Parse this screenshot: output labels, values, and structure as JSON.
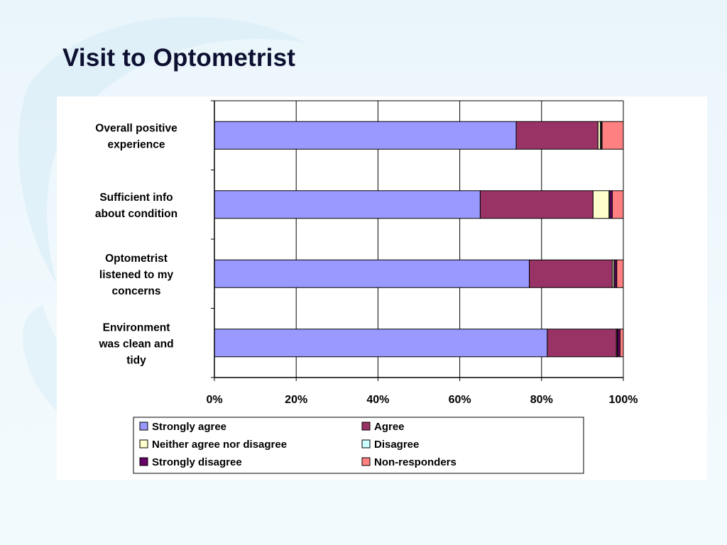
{
  "slide": {
    "title": "Visit to Optometrist"
  },
  "chart_data": {
    "type": "bar",
    "orientation": "horizontal",
    "stacked": "percent",
    "title": "",
    "xlabel": "",
    "ylabel": "",
    "xlim": [
      0,
      100
    ],
    "x_ticks": [
      "0%",
      "20%",
      "40%",
      "60%",
      "80%",
      "100%"
    ],
    "grid": true,
    "legend_position": "bottom",
    "categories": [
      [
        "Overall positive",
        "experience"
      ],
      [
        "Sufficient info",
        "about condition"
      ],
      [
        "Optometrist",
        "listened to my",
        "concerns"
      ],
      [
        "Environment",
        "was clean and",
        "tidy"
      ]
    ],
    "series": [
      {
        "name": "Strongly agree",
        "color": "#9999ff",
        "values": [
          73.8,
          65.0,
          77.0,
          81.4
        ]
      },
      {
        "name": "Agree",
        "color": "#993366",
        "values": [
          20.0,
          27.6,
          20.3,
          16.9
        ]
      },
      {
        "name": "Neither agree nor disagree",
        "color": "#ffffcc",
        "values": [
          0.6,
          3.9,
          0.4,
          0.2
        ]
      },
      {
        "name": "Disagree",
        "color": "#ccffff",
        "values": [
          0.2,
          0.2,
          0.2,
          0.1
        ]
      },
      {
        "name": "Strongly disagree",
        "color": "#660066",
        "values": [
          0.2,
          0.6,
          0.5,
          0.6
        ]
      },
      {
        "name": "Non-responders",
        "color": "#ff8080",
        "values": [
          5.2,
          2.7,
          1.6,
          0.8
        ]
      }
    ]
  }
}
